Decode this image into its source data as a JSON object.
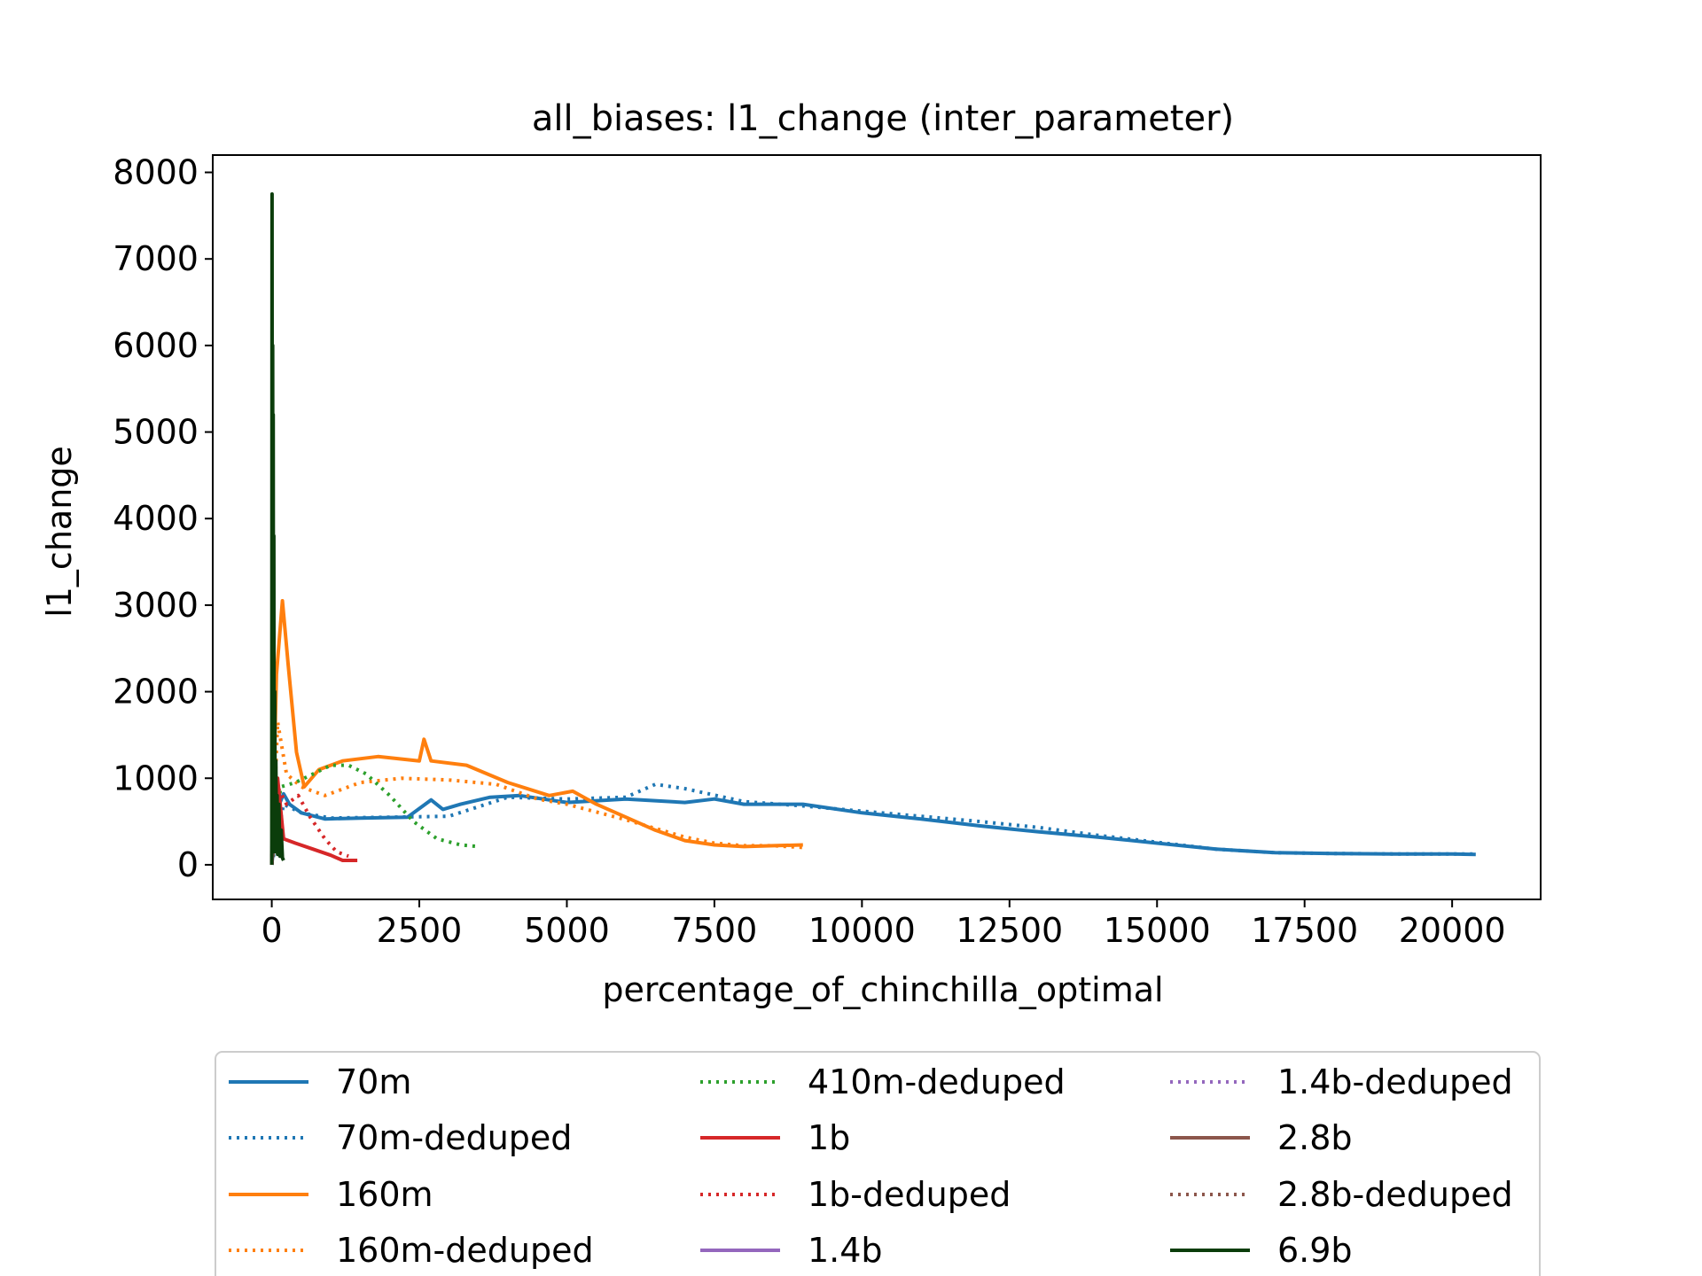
{
  "chart_data": {
    "type": "line",
    "title": "all_biases: l1_change (inter_parameter)",
    "xlabel": "percentage_of_chinchilla_optimal",
    "ylabel": "l1_change",
    "xlim": [
      -1000,
      21500
    ],
    "ylim": [
      -400,
      8200
    ],
    "xticks": [
      0,
      2500,
      5000,
      7500,
      10000,
      12500,
      15000,
      17500,
      20000
    ],
    "xtick_labels": [
      "0",
      "2500",
      "5000",
      "7500",
      "10000",
      "12500",
      "15000",
      "17500",
      "20000"
    ],
    "yticks": [
      0,
      1000,
      2000,
      3000,
      4000,
      5000,
      6000,
      7000,
      8000
    ],
    "ytick_labels": [
      "0",
      "1000",
      "2000",
      "3000",
      "4000",
      "5000",
      "6000",
      "7000",
      "8000"
    ],
    "grid": false,
    "legend_position": "below",
    "series": [
      {
        "name": "70m",
        "color": "#1f77b4",
        "style": "solid",
        "x": [
          0,
          100,
          200,
          300,
          500,
          900,
          1500,
          2300,
          2700,
          2900,
          3200,
          3700,
          4200,
          5000,
          6000,
          7000,
          7500,
          8000,
          9000,
          10000,
          11000,
          12000,
          13000,
          14000,
          15000,
          16000,
          17000,
          18000,
          19000,
          20000,
          20400
        ],
        "y": [
          0,
          650,
          820,
          700,
          600,
          530,
          540,
          550,
          750,
          640,
          700,
          780,
          800,
          720,
          760,
          720,
          760,
          700,
          700,
          600,
          530,
          450,
          380,
          320,
          250,
          180,
          140,
          130,
          125,
          125,
          120
        ]
      },
      {
        "name": "70m-deduped",
        "color": "#1f77b4",
        "style": "dotted",
        "x": [
          0,
          200,
          500,
          1000,
          2000,
          3000,
          4000,
          5000,
          6000,
          6500,
          7000,
          8000,
          9000,
          10000,
          11000,
          12000,
          13000,
          14000,
          15000,
          16000,
          17000,
          18000,
          19000,
          20000,
          20400
        ],
        "y": [
          0,
          700,
          600,
          540,
          550,
          560,
          780,
          760,
          780,
          930,
          880,
          730,
          680,
          620,
          560,
          500,
          430,
          340,
          260,
          180,
          140,
          130,
          125,
          125,
          125
        ]
      },
      {
        "name": "160m",
        "color": "#ff7f0e",
        "style": "solid",
        "x": [
          0,
          80,
          180,
          280,
          420,
          550,
          800,
          1200,
          1800,
          2500,
          2580,
          2700,
          3300,
          4000,
          4700,
          5100,
          5500,
          6000,
          6500,
          7000,
          7500,
          8000,
          8500,
          9000
        ],
        "y": [
          0,
          2200,
          3050,
          2300,
          1300,
          900,
          1100,
          1200,
          1250,
          1200,
          1450,
          1200,
          1150,
          950,
          800,
          850,
          700,
          550,
          400,
          280,
          230,
          210,
          220,
          230
        ]
      },
      {
        "name": "160m-deduped",
        "color": "#ff7f0e",
        "style": "dotted",
        "x": [
          0,
          100,
          250,
          500,
          900,
          1500,
          2200,
          3000,
          3800,
          4500,
          5000,
          6000,
          7000,
          7500,
          8000,
          8500,
          9000
        ],
        "y": [
          0,
          1650,
          1050,
          900,
          800,
          950,
          1000,
          980,
          930,
          760,
          700,
          520,
          320,
          250,
          220,
          220,
          200
        ]
      },
      {
        "name": "410m-deduped",
        "color": "#2ca02c",
        "style": "dotted",
        "x": [
          0,
          150,
          400,
          700,
          1000,
          1300,
          1600,
          2000,
          2400,
          2800,
          3200,
          3500
        ],
        "y": [
          0,
          900,
          950,
          1050,
          1150,
          1150,
          1050,
          800,
          500,
          300,
          230,
          210
        ]
      },
      {
        "name": "1b",
        "color": "#d62728",
        "style": "solid",
        "x": [
          0,
          100,
          200,
          400,
          700,
          1000,
          1200,
          1450
        ],
        "y": [
          0,
          1000,
          300,
          250,
          180,
          110,
          50,
          50
        ]
      },
      {
        "name": "1b-deduped",
        "color": "#d62728",
        "style": "dotted",
        "x": [
          0,
          100,
          250,
          450,
          650,
          900,
          1100,
          1300
        ],
        "y": [
          0,
          900,
          700,
          800,
          550,
          300,
          150,
          100
        ]
      },
      {
        "name": "1.4b",
        "color": "#9467bd",
        "style": "solid",
        "x": [
          0,
          30,
          60,
          100
        ],
        "y": [
          0,
          800,
          300,
          200
        ]
      },
      {
        "name": "1.4b-deduped",
        "color": "#9467bd",
        "style": "dotted",
        "x": [
          0,
          30,
          60,
          100
        ],
        "y": [
          0,
          700,
          300,
          200
        ]
      },
      {
        "name": "2.8b",
        "color": "#8c564b",
        "style": "solid",
        "x": [
          0,
          15,
          30,
          60
        ],
        "y": [
          0,
          700,
          300,
          150
        ]
      },
      {
        "name": "2.8b-deduped",
        "color": "#8c564b",
        "style": "dotted",
        "x": [
          0,
          15,
          30,
          60
        ],
        "y": [
          0,
          650,
          300,
          150
        ]
      },
      {
        "name": "6.9b",
        "color": "#0b3d0b",
        "style": "solid",
        "x": [
          0,
          5,
          10,
          15,
          20,
          25,
          30,
          35,
          40,
          50,
          60,
          70,
          80,
          90,
          100,
          120,
          140,
          160,
          180,
          200
        ],
        "y": [
          0,
          7750,
          500,
          6000,
          300,
          5200,
          200,
          3800,
          150,
          2000,
          150,
          1200,
          150,
          800,
          120,
          700,
          100,
          400,
          80,
          50
        ]
      }
    ]
  }
}
